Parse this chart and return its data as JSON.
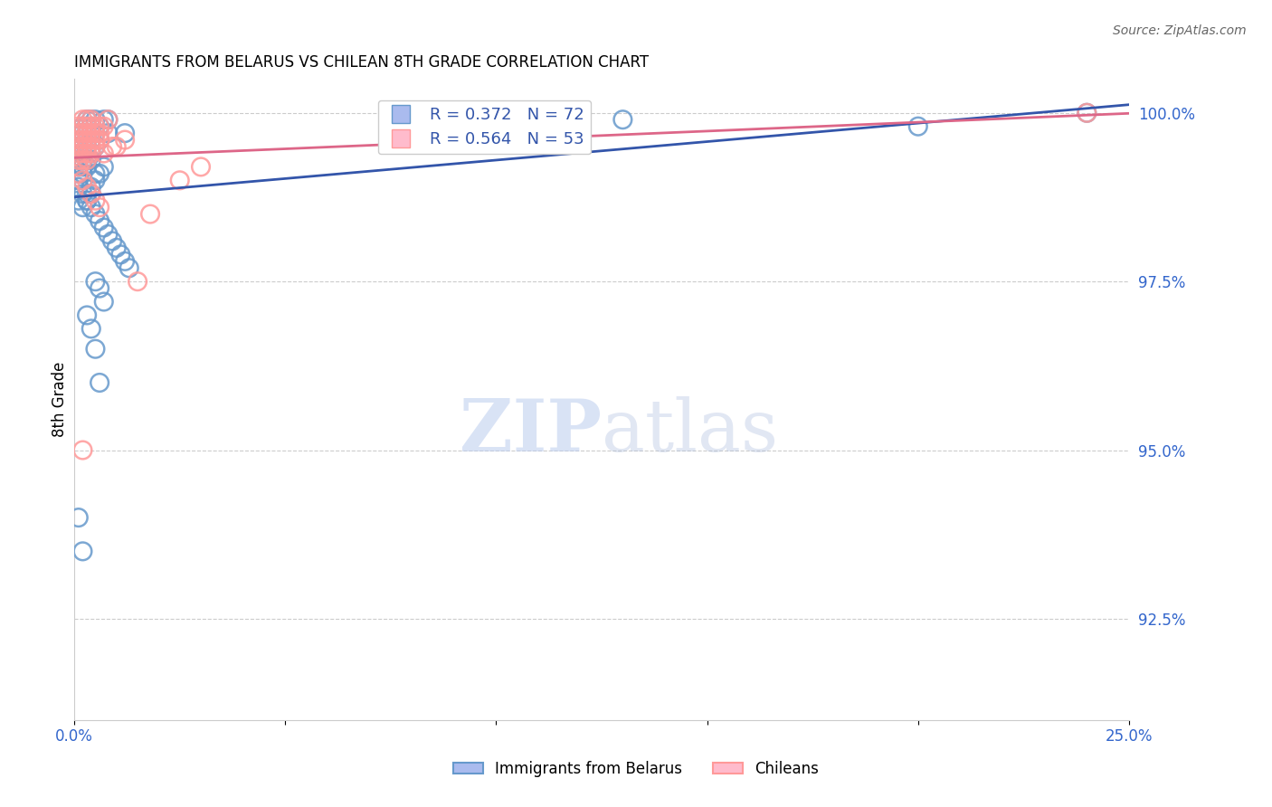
{
  "title": "IMMIGRANTS FROM BELARUS VS CHILEAN 8TH GRADE CORRELATION CHART",
  "source": "Source: ZipAtlas.com",
  "ylabel": "8th Grade",
  "ylabel_right_labels": [
    "100.0%",
    "97.5%",
    "95.0%",
    "92.5%"
  ],
  "ylabel_right_values": [
    1.0,
    0.975,
    0.95,
    0.925
  ],
  "legend1_text": "R = 0.372   N = 72",
  "legend2_text": "R = 0.564   N = 53",
  "blue_color": "#6699CC",
  "pink_color": "#FF9999",
  "blue_line_color": "#3355AA",
  "pink_line_color": "#DD6688",
  "watermark_zip": "ZIP",
  "watermark_atlas": "atlas",
  "x_min": 0.0,
  "x_max": 0.25,
  "y_min": 0.91,
  "y_max": 1.005,
  "blue_scatter_x": [
    0.001,
    0.002,
    0.003,
    0.001,
    0.002,
    0.003,
    0.004,
    0.005,
    0.001,
    0.002,
    0.003,
    0.004,
    0.006,
    0.007,
    0.008,
    0.002,
    0.003,
    0.004,
    0.005,
    0.001,
    0.002,
    0.003,
    0.001,
    0.002,
    0.004,
    0.005,
    0.006,
    0.008,
    0.001,
    0.002,
    0.003,
    0.001,
    0.002,
    0.003,
    0.004,
    0.001,
    0.002,
    0.005,
    0.007,
    0.012,
    0.003,
    0.004,
    0.005,
    0.006,
    0.001,
    0.002,
    0.003,
    0.004,
    0.002,
    0.003,
    0.004,
    0.005,
    0.006,
    0.007,
    0.008,
    0.009,
    0.01,
    0.011,
    0.012,
    0.013,
    0.005,
    0.006,
    0.007,
    0.003,
    0.004,
    0.005,
    0.006,
    0.13,
    0.2,
    0.24,
    0.001,
    0.002
  ],
  "blue_scatter_y": [
    0.997,
    0.998,
    0.999,
    0.996,
    0.997,
    0.998,
    0.999,
    0.999,
    0.995,
    0.996,
    0.997,
    0.998,
    0.998,
    0.999,
    0.999,
    0.994,
    0.995,
    0.996,
    0.997,
    0.993,
    0.994,
    0.995,
    0.992,
    0.993,
    0.994,
    0.995,
    0.996,
    0.997,
    0.991,
    0.992,
    0.993,
    0.99,
    0.991,
    0.992,
    0.993,
    0.989,
    0.99,
    0.991,
    0.992,
    0.997,
    0.988,
    0.989,
    0.99,
    0.991,
    0.987,
    0.988,
    0.987,
    0.988,
    0.986,
    0.987,
    0.986,
    0.985,
    0.984,
    0.983,
    0.982,
    0.981,
    0.98,
    0.979,
    0.978,
    0.977,
    0.975,
    0.974,
    0.972,
    0.97,
    0.968,
    0.965,
    0.96,
    0.999,
    0.998,
    1.0,
    0.94,
    0.935
  ],
  "pink_scatter_x": [
    0.001,
    0.002,
    0.003,
    0.001,
    0.002,
    0.003,
    0.004,
    0.001,
    0.002,
    0.003,
    0.004,
    0.005,
    0.001,
    0.002,
    0.003,
    0.004,
    0.005,
    0.006,
    0.007,
    0.008,
    0.001,
    0.002,
    0.003,
    0.004,
    0.005,
    0.006,
    0.001,
    0.002,
    0.003,
    0.004,
    0.005,
    0.006,
    0.001,
    0.002,
    0.003,
    0.004,
    0.007,
    0.009,
    0.01,
    0.012,
    0.015,
    0.018,
    0.025,
    0.03,
    0.001,
    0.002,
    0.003,
    0.004,
    0.005,
    0.006,
    0.11,
    0.24,
    0.002
  ],
  "pink_scatter_y": [
    0.998,
    0.999,
    0.999,
    0.997,
    0.998,
    0.998,
    0.999,
    0.996,
    0.997,
    0.997,
    0.998,
    0.998,
    0.995,
    0.996,
    0.996,
    0.997,
    0.997,
    0.998,
    0.998,
    0.999,
    0.994,
    0.995,
    0.995,
    0.996,
    0.996,
    0.997,
    0.993,
    0.994,
    0.994,
    0.995,
    0.995,
    0.996,
    0.992,
    0.993,
    0.993,
    0.994,
    0.994,
    0.995,
    0.995,
    0.996,
    0.975,
    0.985,
    0.99,
    0.992,
    0.991,
    0.99,
    0.989,
    0.988,
    0.987,
    0.986,
    0.999,
    1.0,
    0.95
  ]
}
